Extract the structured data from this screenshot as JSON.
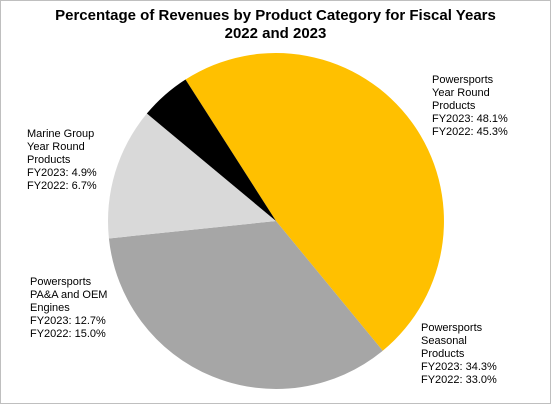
{
  "chart_data": {
    "type": "pie",
    "title_lines": [
      "Percentage of Revenues by Product Category for Fiscal Years",
      "2022 and 2023"
    ],
    "value_series": "FY2023",
    "slices": [
      {
        "name_lines": [
          "Powersports",
          "Year Round",
          "Products"
        ],
        "fy2023_label": "FY2023: 48.1%",
        "fy2022_label": "FY2022: 45.3%",
        "value": 48.1,
        "fy2022_value": 45.3,
        "color": "#ffc000"
      },
      {
        "name_lines": [
          "Powersports",
          "Seasonal",
          "Products"
        ],
        "fy2023_label": "FY2023: 34.3%",
        "fy2022_label": "FY2022: 33.0%",
        "value": 34.3,
        "fy2022_value": 33.0,
        "color": "#a6a6a6"
      },
      {
        "name_lines": [
          "Powersports",
          "PA&A and OEM",
          "Engines"
        ],
        "fy2023_label": "FY2023: 12.7%",
        "fy2022_label": "FY2022: 15.0%",
        "value": 12.7,
        "fy2022_value": 15.0,
        "color": "#d9d9d9"
      },
      {
        "name_lines": [
          "Marine Group",
          "Year Round",
          "Products"
        ],
        "fy2023_label": "FY2023: 4.9%",
        "fy2022_label": "FY2022: 6.7%",
        "value": 4.9,
        "fy2022_value": 6.7,
        "color": "#000000"
      }
    ],
    "legend": "none"
  }
}
